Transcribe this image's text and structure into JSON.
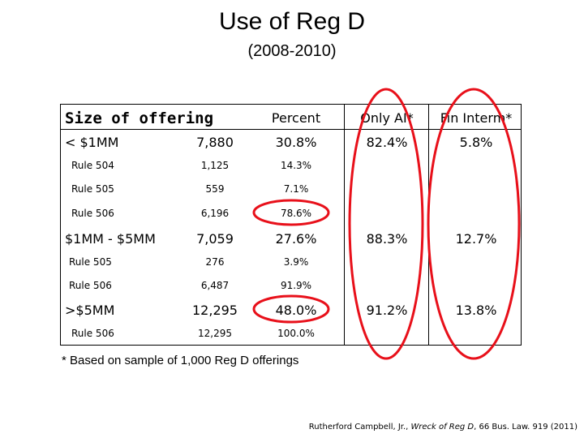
{
  "title": "Use of Reg D",
  "subtitle": "(2008-2010)",
  "table": {
    "headers": [
      "Size of offering",
      "",
      "Percent",
      "Only AI*",
      "Fin Interm*"
    ],
    "rows": [
      {
        "label": "< $1MM",
        "count": "7,880",
        "percent": "30.8%",
        "only_ai": "82.4%",
        "fin_interm": "5.8%"
      },
      {
        "label": "Rule 504",
        "count": "1,125",
        "percent": "14.3%",
        "only_ai": "",
        "fin_interm": ""
      },
      {
        "label": "Rule 505",
        "count": "559",
        "percent": "7.1%",
        "only_ai": "",
        "fin_interm": ""
      },
      {
        "label": "Rule 506",
        "count": "6,196",
        "percent": "78.6%",
        "only_ai": "",
        "fin_interm": ""
      },
      {
        "label": "$1MM - $5MM",
        "count": "7,059",
        "percent": "27.6%",
        "only_ai": "88.3%",
        "fin_interm": "12.7%"
      },
      {
        "label": "Rule 505",
        "count": "276",
        "percent": "3.9%",
        "only_ai": "",
        "fin_interm": ""
      },
      {
        "label": "Rule 506",
        "count": "6,487",
        "percent": "91.9%",
        "only_ai": "",
        "fin_interm": ""
      },
      {
        "label": ">$5MM",
        "count": "12,295",
        "percent": "48.0%",
        "only_ai": "91.2%",
        "fin_interm": "13.8%"
      },
      {
        "label": "Rule 506",
        "count": "12,295",
        "percent": "100.0%",
        "only_ai": "",
        "fin_interm": ""
      }
    ]
  },
  "footnote": "* Based on sample of 1,000 Reg D offerings",
  "citation": {
    "author": "Rutherford Campbell, Jr., ",
    "work": "Wreck of Reg D",
    "source": ", 66 Bus. Law. 919 (2011)"
  },
  "colors": {
    "highlight": "#e8101a",
    "text": "#000000",
    "background": "#ffffff"
  }
}
